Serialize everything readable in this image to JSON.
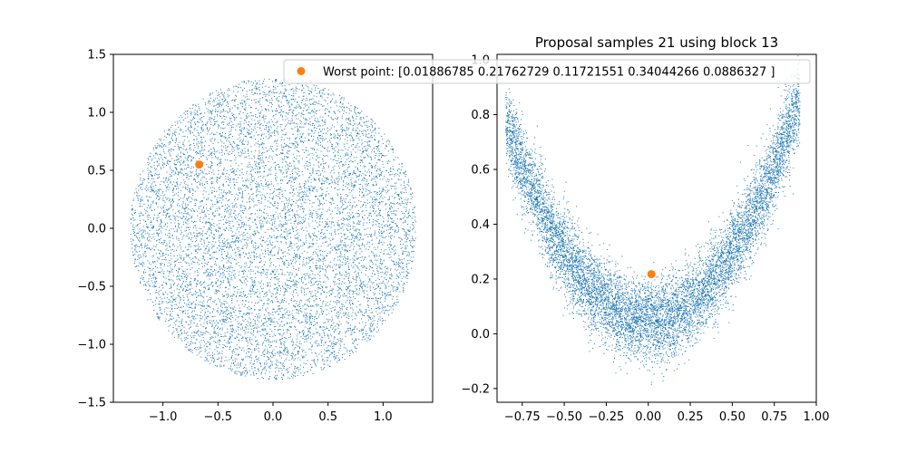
{
  "chart_data": [
    {
      "type": "scatter",
      "title": "",
      "xlabel": "",
      "ylabel": "",
      "xlim": [
        -1.45,
        1.45
      ],
      "ylim": [
        -1.5,
        1.5
      ],
      "xticks": [
        -1.0,
        -0.5,
        0.0,
        0.5,
        1.0
      ],
      "xtick_labels": [
        "−1.0",
        "−0.5",
        "0.0",
        "0.5",
        "1.0"
      ],
      "yticks": [
        -1.5,
        -1.0,
        -0.5,
        0.0,
        0.5,
        1.0,
        1.5
      ],
      "ytick_labels": [
        "−1.5",
        "−1.0",
        "−0.5",
        "0.0",
        "0.5",
        "1.0",
        "1.5"
      ],
      "grid": false,
      "series": [
        {
          "kind": "samples",
          "color": "#1f77b4",
          "count": 9000,
          "distribution": "uniform disk, radius 1.3, centered (0, 0)"
        },
        {
          "kind": "marker",
          "color": "#ff7f0e",
          "x": -0.67,
          "y": 0.55
        }
      ]
    },
    {
      "type": "scatter",
      "title": "Proposal samples 21 using block 13",
      "xlabel": "",
      "ylabel": "",
      "xlim": [
        -0.9,
        1.0
      ],
      "ylim": [
        -0.25,
        1.02
      ],
      "xticks": [
        -0.75,
        -0.5,
        -0.25,
        0.0,
        0.25,
        0.5,
        0.75,
        1.0
      ],
      "xtick_labels": [
        "−0.75",
        "−0.50",
        "−0.25",
        "0.00",
        "0.25",
        "0.50",
        "0.75",
        "1.00"
      ],
      "yticks": [
        -0.2,
        0.0,
        0.2,
        0.4,
        0.6,
        0.8,
        1.0
      ],
      "ytick_labels": [
        "−0.2",
        "0.0",
        "0.2",
        "0.4",
        "0.6",
        "0.8",
        "1.0"
      ],
      "grid": false,
      "legend": {
        "placement": "top",
        "entries": [
          {
            "label": "Worst point: [0.01886785 0.21762729 0.11721551 0.34044266 0.0886327 ]",
            "color": "#ff7f0e",
            "marker": "circle"
          }
        ]
      },
      "series": [
        {
          "kind": "samples",
          "color": "#1f77b4",
          "count": 9000,
          "distribution": "banana, y ≈ x² + 0.05 + noise"
        },
        {
          "kind": "marker",
          "name": "Worst point",
          "color": "#ff7f0e",
          "x": 0.0189,
          "y": 0.2176
        }
      ]
    }
  ]
}
